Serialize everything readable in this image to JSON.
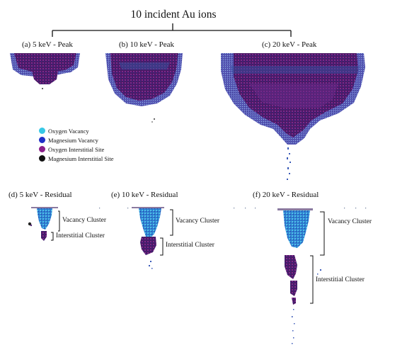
{
  "figure": {
    "title": "10 incident Au ions",
    "panels": {
      "a": "(a) 5 keV - Peak",
      "b": "(b) 10 keV - Peak",
      "c": "(c) 20 keV - Peak",
      "d": "(d) 5 keV - Residual",
      "e": "(e) 10 keV - Residual",
      "f": "(f) 20 keV - Residual"
    },
    "legend": [
      {
        "label": "Oxygen Vacancy",
        "color": "#37c8e6"
      },
      {
        "label": "Magnesium Vacancy",
        "color": "#1f2fc8"
      },
      {
        "label": "Oxygen Interstitial Site",
        "color": "#8a1f8a"
      },
      {
        "label": "Magnesium Interstitial Site",
        "color": "#111111"
      }
    ],
    "annotations": {
      "d_vacancy": "Vacancy Cluster",
      "d_interstitial": "Interstitial Cluster",
      "e_vacancy": "Vacancy Cluster",
      "e_interstitial": "Interstitial Cluster",
      "f_vacancy": "Vacancy Cluster",
      "f_interstitial": "Interstitial Cluster"
    }
  }
}
